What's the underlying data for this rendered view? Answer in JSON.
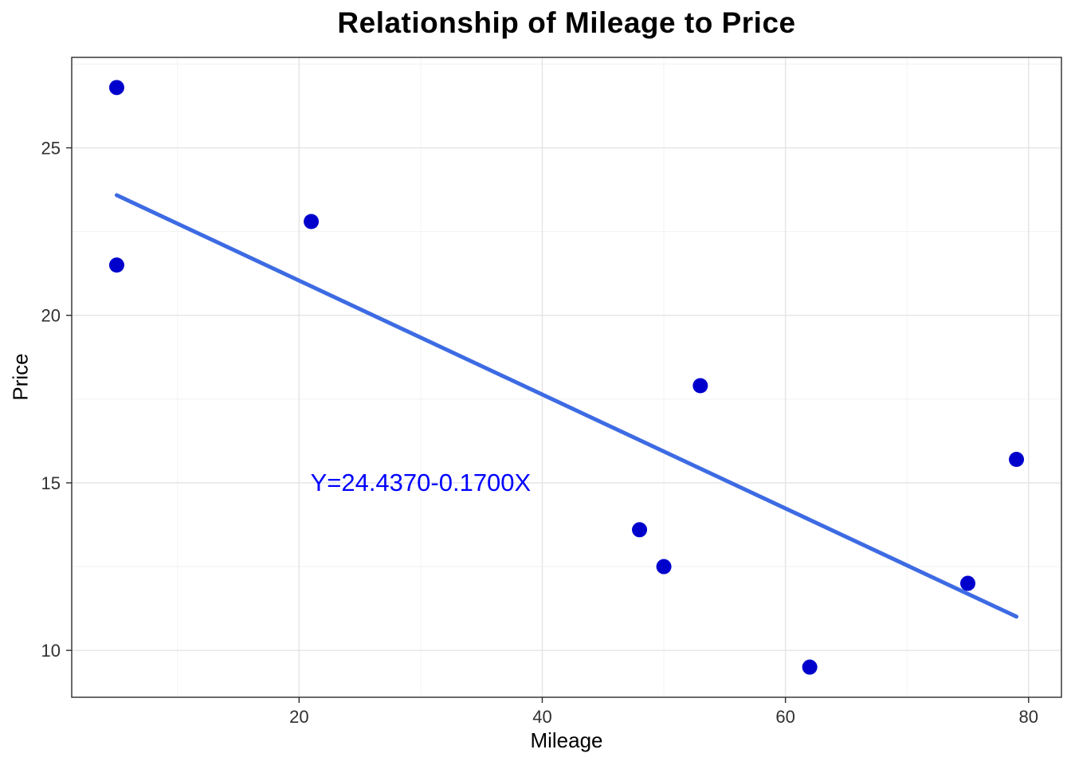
{
  "chart_data": {
    "type": "scatter",
    "title": "Relationship of Mileage to Price",
    "xlabel": "Mileage",
    "ylabel": "Price",
    "xlim": [
      1.3,
      82.7
    ],
    "ylim": [
      8.6,
      27.7
    ],
    "x_ticks": [
      20,
      40,
      60,
      80
    ],
    "y_ticks": [
      10,
      15,
      20,
      25
    ],
    "x_minor_ticks": [
      10,
      30,
      50,
      70
    ],
    "y_minor_ticks": [
      12.5,
      17.5,
      22.5,
      27.5
    ],
    "grid": true,
    "legend": "none",
    "points": [
      {
        "x": 5,
        "y": 26.8
      },
      {
        "x": 5,
        "y": 21.5
      },
      {
        "x": 21,
        "y": 22.8
      },
      {
        "x": 48,
        "y": 13.6
      },
      {
        "x": 50,
        "y": 12.5
      },
      {
        "x": 53,
        "y": 17.9
      },
      {
        "x": 62,
        "y": 9.5
      },
      {
        "x": 75,
        "y": 12.0
      },
      {
        "x": 79,
        "y": 15.7
      }
    ],
    "regression_line": {
      "intercept": 24.437,
      "slope": -0.17,
      "x_start": 5,
      "x_end": 79
    },
    "annotation": {
      "text": "Y=24.4370-0.1700X",
      "x": 30,
      "y": 15
    },
    "colors": {
      "point": "#0000CD",
      "line": "#3D6BE3",
      "annotation": "#0000FF",
      "grid_major": "#E4E4E4",
      "grid_minor": "#F2F2F2",
      "panel_border": "#2B2B2B",
      "tick_label": "#303030",
      "title": "#000000"
    }
  }
}
